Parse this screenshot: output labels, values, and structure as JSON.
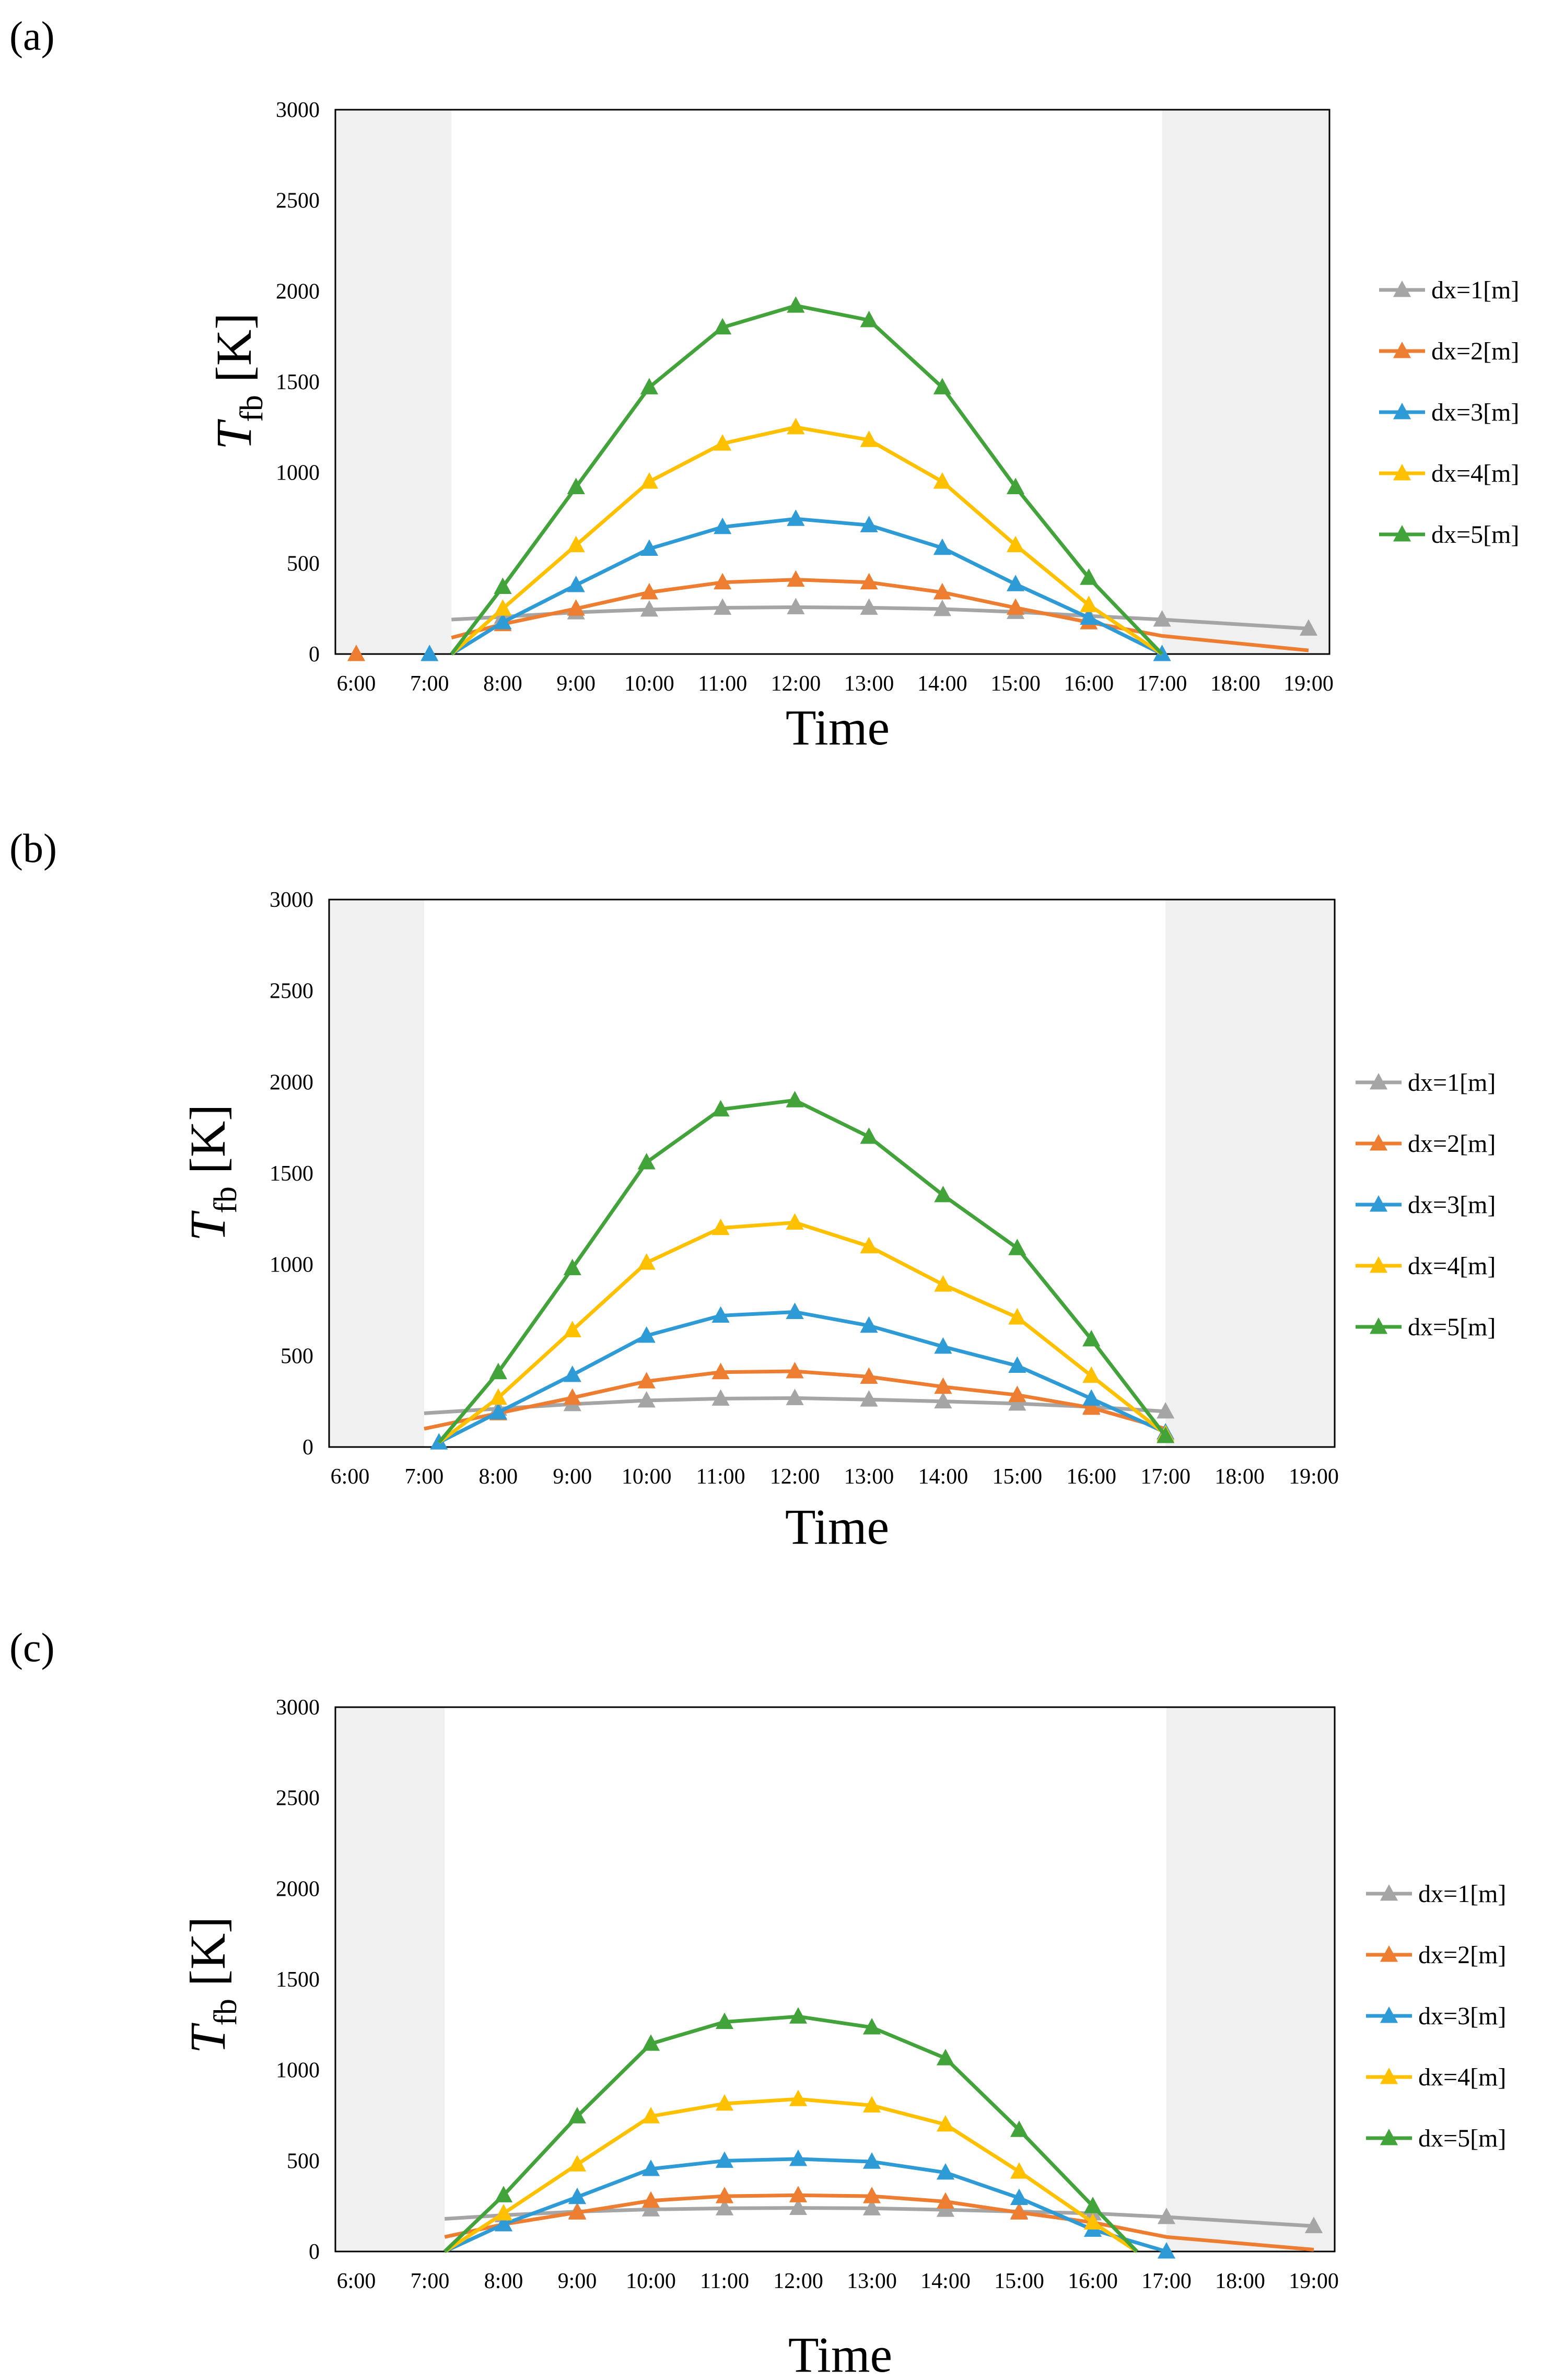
{
  "panel_labels": [
    "(a)",
    "(b)",
    "(c)"
  ],
  "colors": {
    "dx1": "#a5a5a5",
    "dx2": "#ed7d31",
    "dx3": "#2e9bd6",
    "dx4": "#ffc000",
    "dx5": "#43a33b",
    "night_shade": "#f0f0f0"
  },
  "chart_data": [
    {
      "type": "line",
      "panel": "(a)",
      "xlabel": "Time",
      "ylabel_main": "T",
      "ylabel_sub": "fb",
      "ylabel_unit": "[K]",
      "categories": [
        "6:00",
        "7:00",
        "8:00",
        "9:00",
        "10:00",
        "11:00",
        "12:00",
        "13:00",
        "14:00",
        "15:00",
        "16:00",
        "17:00",
        "18:00",
        "19:00"
      ],
      "yticks": [
        "0",
        "500",
        "1000",
        "1500",
        "2000",
        "2500",
        "3000"
      ],
      "ylim": [
        0,
        3000
      ],
      "grid": false,
      "legend_position": "right",
      "shaded_x_ranges": [
        [
          6,
          7.3
        ],
        [
          17,
          19
        ]
      ],
      "series": [
        {
          "name": "dx=1[m]",
          "color_key": "dx1",
          "x": [
            7.3,
            8,
            9,
            10,
            11,
            12,
            13,
            14,
            15,
            16,
            17,
            19
          ],
          "y": [
            190,
            205,
            230,
            245,
            255,
            258,
            255,
            248,
            232,
            210,
            190,
            140
          ],
          "marker_x": [
            8,
            9,
            10,
            11,
            12,
            13,
            14,
            15,
            16,
            17,
            19
          ],
          "marker_y": [
            205,
            230,
            245,
            255,
            258,
            255,
            248,
            232,
            210,
            190,
            140
          ]
        },
        {
          "name": "dx=2[m]",
          "color_key": "dx2",
          "x": [
            7.3,
            8,
            9,
            10,
            11,
            12,
            13,
            14,
            15,
            16,
            17,
            19
          ],
          "y": [
            90,
            165,
            250,
            340,
            395,
            410,
            395,
            340,
            255,
            175,
            100,
            20
          ],
          "marker_x": [
            6,
            8,
            9,
            10,
            11,
            12,
            13,
            14,
            15,
            16
          ],
          "marker_y": [
            0,
            165,
            250,
            340,
            395,
            410,
            395,
            340,
            255,
            175
          ]
        },
        {
          "name": "dx=3[m]",
          "color_key": "dx3",
          "x": [
            7.3,
            8,
            9,
            10,
            11,
            12,
            13,
            14,
            15,
            16,
            17
          ],
          "y": [
            0,
            175,
            380,
            580,
            700,
            745,
            710,
            585,
            385,
            200,
            0
          ],
          "marker_x": [
            7,
            8,
            9,
            10,
            11,
            12,
            13,
            14,
            15,
            16,
            17
          ],
          "marker_y": [
            0,
            175,
            380,
            580,
            700,
            745,
            710,
            585,
            385,
            200,
            0
          ]
        },
        {
          "name": "dx=4[m]",
          "color_key": "dx4",
          "x": [
            7.3,
            8,
            9,
            10,
            11,
            12,
            13,
            14,
            15,
            16,
            17
          ],
          "y": [
            0,
            250,
            600,
            950,
            1160,
            1250,
            1180,
            950,
            600,
            270,
            0
          ],
          "marker_x": [
            8,
            9,
            10,
            11,
            12,
            13,
            14,
            15,
            16
          ],
          "marker_y": [
            250,
            600,
            950,
            1160,
            1250,
            1180,
            950,
            600,
            270
          ]
        },
        {
          "name": "dx=5[m]",
          "color_key": "dx5",
          "x": [
            7.3,
            8,
            9,
            10,
            11,
            12,
            13,
            14,
            15,
            16,
            17
          ],
          "y": [
            0,
            370,
            920,
            1470,
            1800,
            1920,
            1840,
            1470,
            920,
            420,
            0
          ],
          "marker_x": [
            8,
            9,
            10,
            11,
            12,
            13,
            14,
            15,
            16
          ],
          "marker_y": [
            370,
            920,
            1470,
            1800,
            1920,
            1840,
            1470,
            920,
            420
          ]
        }
      ]
    },
    {
      "type": "line",
      "panel": "(b)",
      "xlabel": "Time",
      "ylabel_main": "T",
      "ylabel_sub": "fb",
      "ylabel_unit": "[K]",
      "categories": [
        "6:00",
        "7:00",
        "8:00",
        "9:00",
        "10:00",
        "11:00",
        "12:00",
        "13:00",
        "14:00",
        "15:00",
        "16:00",
        "17:00",
        "18:00",
        "19:00"
      ],
      "yticks": [
        "0",
        "500",
        "1000",
        "1500",
        "2000",
        "2500",
        "3000"
      ],
      "ylim": [
        0,
        3000
      ],
      "grid": false,
      "legend_position": "right",
      "shaded_x_ranges": [
        [
          6,
          7
        ],
        [
          17,
          19
        ]
      ],
      "series": [
        {
          "name": "dx=1[m]",
          "color_key": "dx1",
          "x": [
            7,
            8,
            9,
            10,
            11,
            12,
            13,
            14,
            15,
            16,
            17
          ],
          "y": [
            185,
            210,
            235,
            255,
            265,
            268,
            260,
            250,
            238,
            220,
            195
          ],
          "marker_x": [
            8,
            9,
            10,
            11,
            12,
            13,
            14,
            15,
            16,
            17
          ],
          "marker_y": [
            210,
            235,
            255,
            265,
            268,
            260,
            250,
            238,
            220,
            195
          ]
        },
        {
          "name": "dx=2[m]",
          "color_key": "dx2",
          "x": [
            7,
            8,
            9,
            10,
            11,
            12,
            13,
            14,
            15,
            16,
            17
          ],
          "y": [
            100,
            185,
            270,
            360,
            410,
            415,
            385,
            330,
            285,
            215,
            100
          ],
          "marker_x": [
            8,
            9,
            10,
            11,
            12,
            13,
            14,
            15,
            16
          ],
          "marker_y": [
            185,
            270,
            360,
            410,
            415,
            385,
            330,
            285,
            215
          ]
        },
        {
          "name": "dx=3[m]",
          "color_key": "dx3",
          "x": [
            7.2,
            8,
            9,
            10,
            11,
            12,
            13,
            14,
            15,
            16,
            17
          ],
          "y": [
            25,
            190,
            395,
            610,
            720,
            740,
            665,
            550,
            445,
            265,
            80
          ],
          "marker_x": [
            7.2,
            8,
            9,
            10,
            11,
            12,
            13,
            14,
            15,
            16,
            17
          ],
          "marker_y": [
            25,
            190,
            395,
            610,
            720,
            740,
            665,
            550,
            445,
            265,
            80
          ]
        },
        {
          "name": "dx=4[m]",
          "color_key": "dx4",
          "x": [
            7.2,
            8,
            9,
            10,
            11,
            12,
            13,
            14,
            15,
            16,
            17
          ],
          "y": [
            25,
            270,
            640,
            1010,
            1200,
            1230,
            1100,
            890,
            710,
            390,
            70
          ],
          "marker_x": [
            8,
            9,
            10,
            11,
            12,
            13,
            14,
            15,
            16,
            17
          ],
          "marker_y": [
            270,
            640,
            1010,
            1200,
            1230,
            1100,
            890,
            710,
            390,
            70
          ]
        },
        {
          "name": "dx=5[m]",
          "color_key": "dx5",
          "x": [
            7.2,
            8,
            9,
            10,
            11,
            12,
            13,
            14,
            15,
            16,
            17
          ],
          "y": [
            25,
            410,
            980,
            1560,
            1850,
            1900,
            1700,
            1380,
            1090,
            590,
            60
          ],
          "marker_x": [
            8,
            9,
            10,
            11,
            12,
            13,
            14,
            15,
            16,
            17
          ],
          "marker_y": [
            410,
            980,
            1560,
            1850,
            1900,
            1700,
            1380,
            1090,
            590,
            60
          ]
        }
      ]
    },
    {
      "type": "line",
      "panel": "(c)",
      "xlabel": "Time",
      "ylabel_main": "T",
      "ylabel_sub": "fb",
      "ylabel_unit": "[K]",
      "categories": [
        "6:00",
        "7:00",
        "8:00",
        "9:00",
        "10:00",
        "11:00",
        "12:00",
        "13:00",
        "14:00",
        "15:00",
        "16:00",
        "17:00",
        "18:00",
        "19:00"
      ],
      "yticks": [
        "0",
        "500",
        "1000",
        "1500",
        "2000",
        "2500",
        "3000"
      ],
      "ylim": [
        0,
        3000
      ],
      "grid": false,
      "legend_position": "right",
      "shaded_x_ranges": [
        [
          6,
          7.2
        ],
        [
          17,
          19
        ]
      ],
      "series": [
        {
          "name": "dx=1[m]",
          "color_key": "dx1",
          "x": [
            7.2,
            8,
            9,
            10,
            11,
            12,
            13,
            14,
            15,
            16,
            17,
            19
          ],
          "y": [
            180,
            200,
            220,
            232,
            238,
            240,
            238,
            230,
            220,
            210,
            190,
            140
          ],
          "marker_x": [
            8,
            9,
            10,
            11,
            12,
            13,
            14,
            15,
            16,
            17,
            19
          ],
          "marker_y": [
            200,
            220,
            232,
            238,
            240,
            238,
            230,
            220,
            210,
            190,
            140
          ]
        },
        {
          "name": "dx=2[m]",
          "color_key": "dx2",
          "x": [
            7.2,
            8,
            9,
            10,
            11,
            12,
            13,
            14,
            15,
            16,
            17,
            19
          ],
          "y": [
            80,
            150,
            215,
            280,
            305,
            310,
            305,
            275,
            215,
            160,
            80,
            10
          ],
          "marker_x": [
            8,
            9,
            10,
            11,
            12,
            13,
            14,
            15,
            16
          ],
          "marker_y": [
            150,
            215,
            280,
            305,
            310,
            305,
            275,
            215,
            160
          ]
        },
        {
          "name": "dx=3[m]",
          "color_key": "dx3",
          "x": [
            7.2,
            8,
            9,
            10,
            11,
            12,
            13,
            14,
            15,
            16,
            17
          ],
          "y": [
            0,
            150,
            300,
            455,
            500,
            510,
            495,
            435,
            295,
            120,
            0
          ],
          "marker_x": [
            8,
            9,
            10,
            11,
            12,
            13,
            14,
            15,
            16,
            17
          ],
          "marker_y": [
            150,
            300,
            455,
            500,
            510,
            495,
            435,
            295,
            120,
            0
          ]
        },
        {
          "name": "dx=4[m]",
          "color_key": "dx4",
          "x": [
            7.2,
            8,
            9,
            10,
            11,
            12,
            13,
            14,
            15,
            16,
            16.6
          ],
          "y": [
            0,
            210,
            480,
            745,
            815,
            840,
            805,
            700,
            440,
            160,
            0
          ],
          "marker_x": [
            8,
            9,
            10,
            11,
            12,
            13,
            14,
            15,
            16
          ],
          "marker_y": [
            210,
            480,
            745,
            815,
            840,
            805,
            700,
            440,
            160
          ]
        },
        {
          "name": "dx=5[m]",
          "color_key": "dx5",
          "x": [
            7.2,
            8,
            9,
            10,
            11,
            12,
            13,
            14,
            15,
            16,
            16.6
          ],
          "y": [
            0,
            310,
            745,
            1145,
            1265,
            1295,
            1235,
            1065,
            670,
            250,
            0
          ],
          "marker_x": [
            8,
            9,
            10,
            11,
            12,
            13,
            14,
            15,
            16
          ],
          "marker_y": [
            310,
            745,
            1145,
            1265,
            1295,
            1235,
            1065,
            670,
            250
          ]
        }
      ]
    }
  ]
}
